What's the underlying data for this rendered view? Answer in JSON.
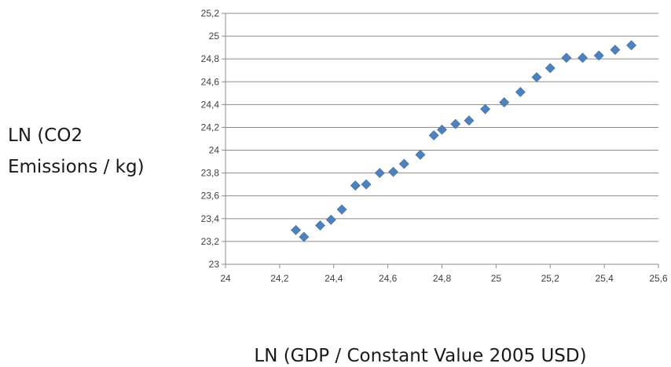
{
  "chart_data": {
    "type": "scatter",
    "title": "",
    "xlabel": "LN (GDP / Constant Value 2005 USD)",
    "ylabel_lines": [
      "LN (CO2",
      "Emissions / kg)"
    ],
    "xlim": [
      24,
      25.6
    ],
    "ylim": [
      23,
      25.2
    ],
    "x_ticks": [
      24,
      24.2,
      24.4,
      24.6,
      24.8,
      25,
      25.2,
      25.4,
      25.6
    ],
    "y_ticks": [
      23,
      23.2,
      23.4,
      23.6,
      23.8,
      24,
      24.2,
      24.4,
      24.6,
      24.8,
      25,
      25.2
    ],
    "x_tick_labels": [
      "24",
      "24,2",
      "24,4",
      "24,6",
      "24,8",
      "25",
      "25,2",
      "25,4",
      "25,6"
    ],
    "y_tick_labels": [
      "23",
      "23,2",
      "23,4",
      "23,6",
      "23,8",
      "24",
      "24,2",
      "24,4",
      "24,6",
      "24,8",
      "25",
      "25,2"
    ],
    "grid": "horizontal",
    "marker": "diamond",
    "marker_color": "#4f81bd",
    "grid_color": "#8c8c8c",
    "axis_color": "#8c8c8c",
    "points": [
      {
        "x": 24.26,
        "y": 23.3
      },
      {
        "x": 24.29,
        "y": 23.24
      },
      {
        "x": 24.35,
        "y": 23.34
      },
      {
        "x": 24.39,
        "y": 23.39
      },
      {
        "x": 24.43,
        "y": 23.48
      },
      {
        "x": 24.48,
        "y": 23.69
      },
      {
        "x": 24.52,
        "y": 23.7
      },
      {
        "x": 24.57,
        "y": 23.8
      },
      {
        "x": 24.62,
        "y": 23.81
      },
      {
        "x": 24.66,
        "y": 23.88
      },
      {
        "x": 24.72,
        "y": 23.96
      },
      {
        "x": 24.77,
        "y": 24.13
      },
      {
        "x": 24.8,
        "y": 24.18
      },
      {
        "x": 24.85,
        "y": 24.23
      },
      {
        "x": 24.9,
        "y": 24.26
      },
      {
        "x": 24.96,
        "y": 24.36
      },
      {
        "x": 25.03,
        "y": 24.42
      },
      {
        "x": 25.09,
        "y": 24.51
      },
      {
        "x": 25.15,
        "y": 24.64
      },
      {
        "x": 25.2,
        "y": 24.72
      },
      {
        "x": 25.26,
        "y": 24.81
      },
      {
        "x": 25.32,
        "y": 24.81
      },
      {
        "x": 25.38,
        "y": 24.83
      },
      {
        "x": 25.44,
        "y": 24.88
      },
      {
        "x": 25.5,
        "y": 24.92
      }
    ]
  }
}
